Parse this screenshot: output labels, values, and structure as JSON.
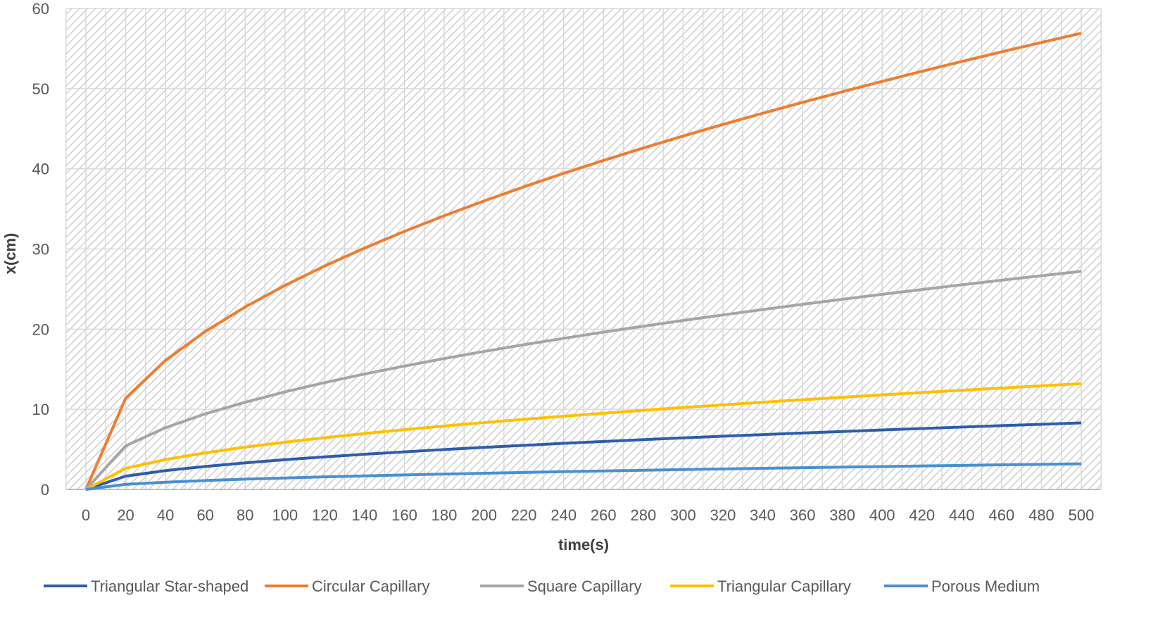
{
  "chart_data": {
    "type": "line",
    "title": "",
    "xlabel": "time(s)",
    "ylabel": "x(cm)",
    "ylim": [
      0,
      60
    ],
    "yticks": [
      0,
      10,
      20,
      30,
      40,
      50,
      60
    ],
    "grid": true,
    "legend_position": "bottom",
    "x": [
      0,
      20,
      40,
      60,
      80,
      100,
      120,
      140,
      160,
      180,
      200,
      220,
      240,
      260,
      280,
      300,
      320,
      340,
      360,
      380,
      400,
      420,
      440,
      460,
      480,
      500
    ],
    "series": [
      {
        "name": "Triangular Star-shaped",
        "color": "#2E5DAA",
        "values": [
          0,
          1.66,
          2.35,
          2.87,
          3.32,
          3.71,
          4.06,
          4.39,
          4.69,
          4.98,
          5.25,
          5.5,
          5.75,
          5.98,
          6.21,
          6.43,
          6.64,
          6.84,
          7.04,
          7.23,
          7.42,
          7.6,
          7.78,
          7.96,
          8.13,
          8.3
        ]
      },
      {
        "name": "Circular Capillary",
        "color": "#ED7D31",
        "values": [
          0,
          11.38,
          16.1,
          19.71,
          22.76,
          25.45,
          27.88,
          30.11,
          32.19,
          34.14,
          35.99,
          37.75,
          39.43,
          41.04,
          42.59,
          44.08,
          45.53,
          46.93,
          48.29,
          49.61,
          50.9,
          52.16,
          53.38,
          54.59,
          55.76,
          56.91
        ]
      },
      {
        "name": "Square Capillary",
        "color": "#A5A5A5",
        "values": [
          0,
          5.44,
          7.7,
          9.43,
          10.88,
          12.17,
          13.33,
          14.4,
          15.39,
          16.33,
          17.21,
          18.05,
          18.85,
          19.62,
          20.36,
          21.08,
          21.77,
          22.44,
          23.09,
          23.72,
          24.34,
          24.94,
          25.53,
          26.1,
          26.66,
          27.21
        ]
      },
      {
        "name": "Triangular Capillary",
        "color": "#FFC000",
        "values": [
          0,
          2.64,
          3.73,
          4.57,
          5.28,
          5.9,
          6.46,
          6.98,
          7.46,
          7.92,
          8.34,
          8.75,
          9.14,
          9.51,
          9.87,
          10.22,
          10.55,
          10.88,
          11.19,
          11.5,
          11.8,
          12.09,
          12.38,
          12.65,
          12.93,
          13.19
        ]
      },
      {
        "name": "Porous Medium",
        "color": "#4A90D0",
        "values": [
          0,
          0.64,
          0.9,
          1.11,
          1.28,
          1.43,
          1.57,
          1.69,
          1.81,
          1.92,
          2.02,
          2.12,
          2.22,
          2.31,
          2.39,
          2.48,
          2.56,
          2.64,
          2.71,
          2.79,
          2.86,
          2.93,
          3.0,
          3.07,
          3.13,
          3.2
        ]
      }
    ]
  }
}
